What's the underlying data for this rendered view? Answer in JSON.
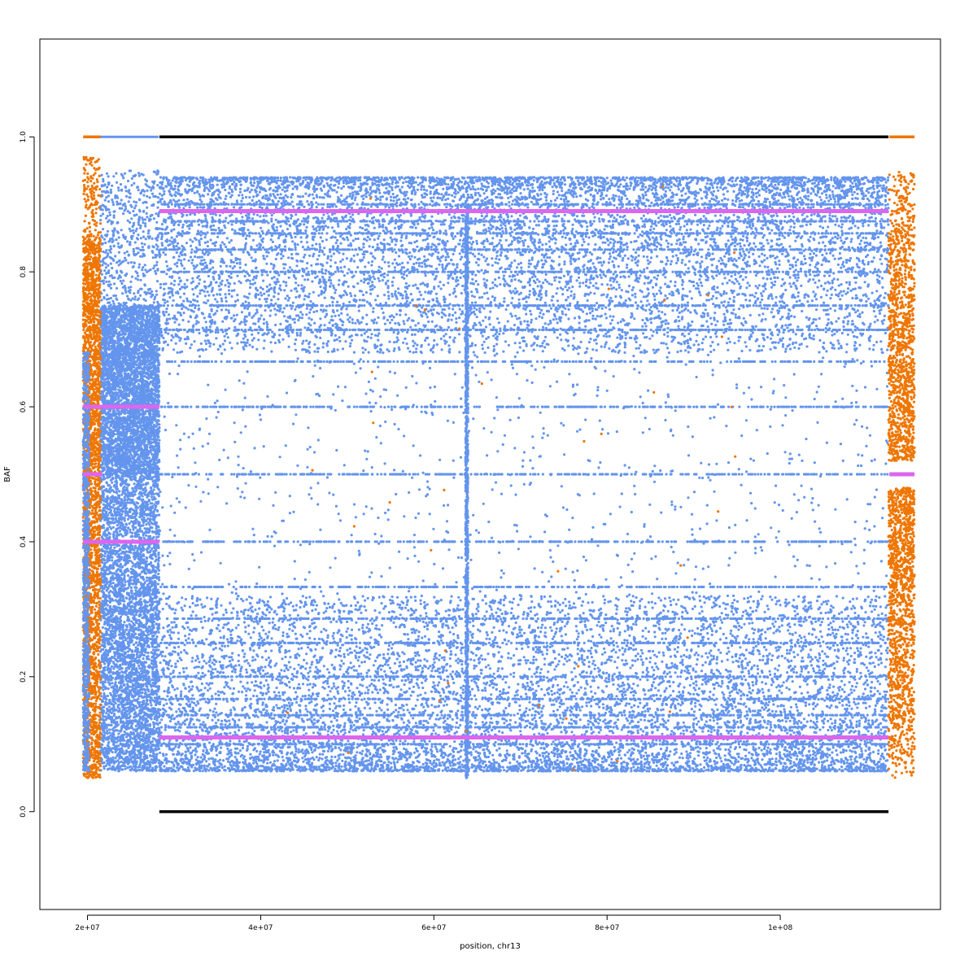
{
  "chart_data": {
    "type": "scatter",
    "title": "",
    "xlabel": "position, chr13",
    "ylabel": "BAF",
    "xlim": [
      14500000,
      118500000
    ],
    "ylim": [
      -0.145,
      1.145
    ],
    "x_ticks": [
      20000000,
      40000000,
      60000000,
      80000000,
      100000000
    ],
    "x_tick_labels": [
      "2e+07",
      "4e+07",
      "6e+07",
      "8e+07",
      "1e+08"
    ],
    "y_ticks": [
      0.0,
      0.2,
      0.4,
      0.6,
      0.8,
      1.0
    ],
    "y_tick_labels": [
      "0.0",
      "0.2",
      "0.4",
      "0.6",
      "0.8",
      "1.0"
    ],
    "grid": false,
    "legend": "none",
    "colors": {
      "homozygous": "#000000",
      "heterozygous": "#6495ED",
      "edge_region": "#EE7600",
      "segment_means": "#DD66EE"
    },
    "regions": {
      "left_orange": [
        19500000,
        21500000
      ],
      "left_blue_dense": [
        21500000,
        28300000
      ],
      "main": [
        28300000,
        112500000
      ],
      "right_orange": [
        112500000,
        115500000
      ]
    },
    "segments": [
      {
        "x": [
          28300000,
          112500000
        ],
        "y": 0.89
      },
      {
        "x": [
          28300000,
          112500000
        ],
        "y": 0.11
      },
      {
        "x": [
          21500000,
          28300000
        ],
        "y": 0.6
      },
      {
        "x": [
          21500000,
          28300000
        ],
        "y": 0.4
      },
      {
        "x": [
          19500000,
          21500000
        ],
        "y": 0.6
      },
      {
        "x": [
          19500000,
          21500000
        ],
        "y": 0.4
      },
      {
        "x": [
          19500000,
          21700000
        ],
        "y": 0.5
      },
      {
        "x": [
          112600000,
          115500000
        ],
        "y": 0.5
      }
    ],
    "homozygous_lines": [
      {
        "x": [
          28300000,
          112500000
        ],
        "y": 1.0
      },
      {
        "x": [
          28300000,
          112500000
        ],
        "y": 0.0
      }
    ],
    "vertical_band_x": 63800000,
    "point_density": {
      "main": 26000,
      "left_blue_dense": 9000,
      "left_orange": 2800,
      "right_orange": 2600
    }
  }
}
